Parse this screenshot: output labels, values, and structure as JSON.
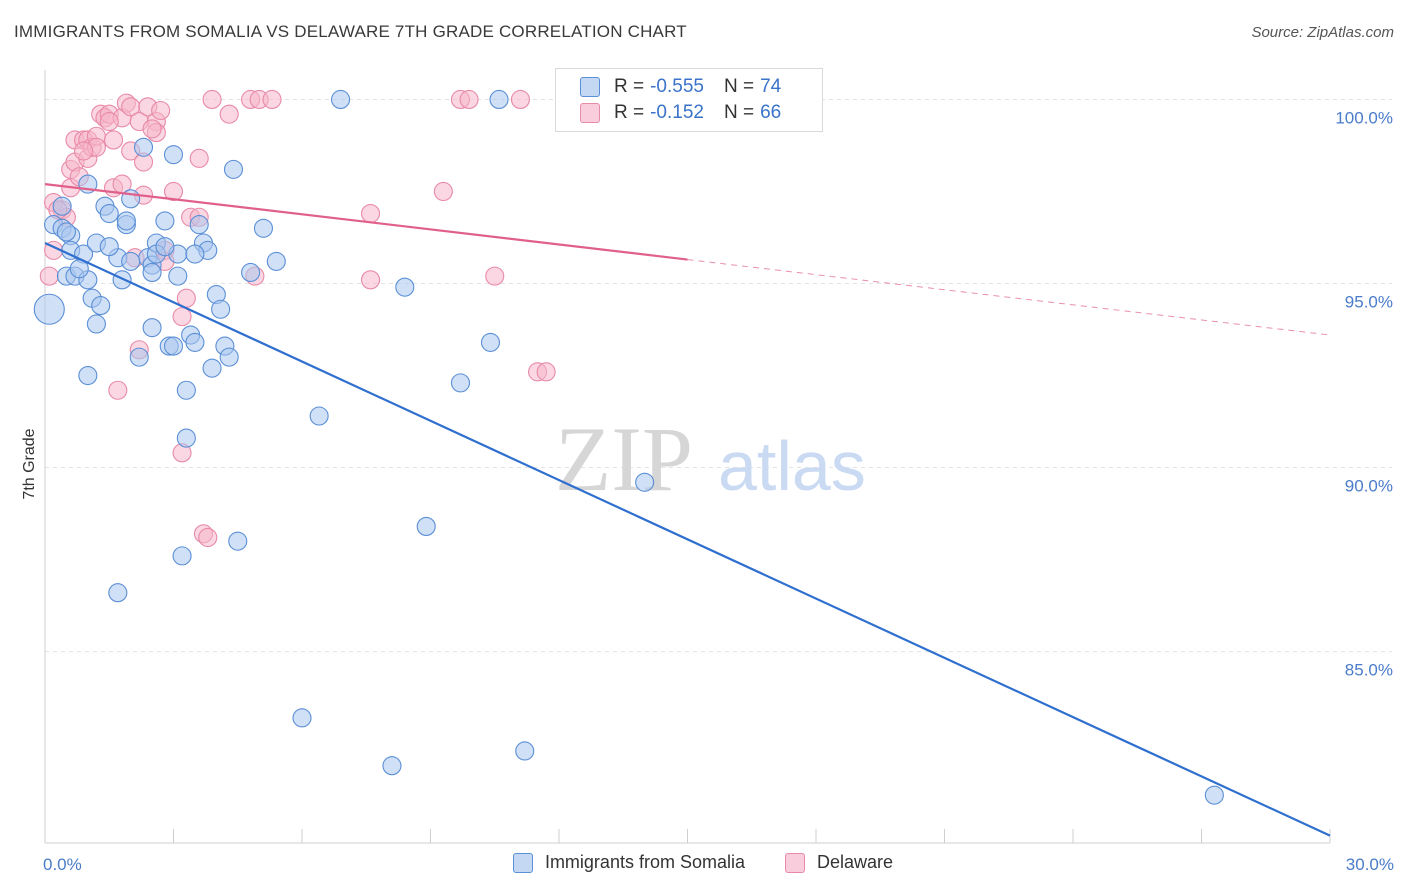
{
  "title": "IMMIGRANTS FROM SOMALIA VS DELAWARE 7TH GRADE CORRELATION CHART",
  "source": "Source: ZipAtlas.com",
  "watermark": {
    "zip": "ZIP",
    "atlas": "atlas"
  },
  "colors": {
    "blue_fill": "#a9c7ef",
    "blue_stroke": "#5b8fd6",
    "blue_line": "#2f6fcf",
    "pink_fill": "#f6b7cb",
    "pink_stroke": "#e88aa8",
    "pink_line": "#e0608a",
    "tick_text": "#4a7cc9",
    "grid": "#e3e3e3"
  },
  "legend": {
    "rows": [
      {
        "r_label": "R =",
        "r_value": "-0.555",
        "n_label": "N =",
        "n_value": "74"
      },
      {
        "r_label": "R =",
        "r_value": "-0.152",
        "n_label": "N =",
        "n_value": "66"
      }
    ]
  },
  "chart_data": {
    "type": "scatter",
    "xlabel": "",
    "ylabel": "7th Grade",
    "xlim": [
      0,
      30
    ],
    "ylim": [
      79.8,
      100.8
    ],
    "x_tick_labels": [
      {
        "value": 0,
        "label": "0.0%"
      },
      {
        "value": 30,
        "label": "30.0%"
      }
    ],
    "y_tick_labels": [
      {
        "value": 100,
        "label": "100.0%"
      },
      {
        "value": 95,
        "label": "95.0%"
      },
      {
        "value": 90,
        "label": "90.0%"
      },
      {
        "value": 85,
        "label": "85.0%"
      }
    ],
    "grid": true,
    "legend_position": "top-center",
    "series": [
      {
        "name": "Immigrants from Somalia",
        "trend": {
          "x0": 0,
          "y0": 96.1,
          "x1": 30,
          "y1": 80.0,
          "solid_until": 30
        },
        "points": [
          [
            0.1,
            94.3
          ],
          [
            0.2,
            96.6
          ],
          [
            0.4,
            96.5
          ],
          [
            0.4,
            97.1
          ],
          [
            0.5,
            95.2
          ],
          [
            0.6,
            96.3
          ],
          [
            0.6,
            95.9
          ],
          [
            0.7,
            95.2
          ],
          [
            0.9,
            95.8
          ],
          [
            1.0,
            95.1
          ],
          [
            0.8,
            95.4
          ],
          [
            1.0,
            97.7
          ],
          [
            1.1,
            94.6
          ],
          [
            1.2,
            93.9
          ],
          [
            1.3,
            94.4
          ],
          [
            1.2,
            96.1
          ],
          [
            1.4,
            97.1
          ],
          [
            1.5,
            96.9
          ],
          [
            1.7,
            95.7
          ],
          [
            1.8,
            95.1
          ],
          [
            1.9,
            96.6
          ],
          [
            2.0,
            97.3
          ],
          [
            2.3,
            98.7
          ],
          [
            2.4,
            95.7
          ],
          [
            2.5,
            95.5
          ],
          [
            2.6,
            96.1
          ],
          [
            2.6,
            95.8
          ],
          [
            2.8,
            96.7
          ],
          [
            2.9,
            93.3
          ],
          [
            3.0,
            98.5
          ],
          [
            3.1,
            95.8
          ],
          [
            3.1,
            95.2
          ],
          [
            3.3,
            92.1
          ],
          [
            3.3,
            90.8
          ],
          [
            3.4,
            93.6
          ],
          [
            3.5,
            93.4
          ],
          [
            3.6,
            96.6
          ],
          [
            3.7,
            96.1
          ],
          [
            3.8,
            95.9
          ],
          [
            3.9,
            92.7
          ],
          [
            4.0,
            94.7
          ],
          [
            4.1,
            94.3
          ],
          [
            4.2,
            93.3
          ],
          [
            4.4,
            98.1
          ],
          [
            4.5,
            88.0
          ],
          [
            4.8,
            95.3
          ],
          [
            5.1,
            96.5
          ],
          [
            5.4,
            95.6
          ],
          [
            6.0,
            83.2
          ],
          [
            6.4,
            91.4
          ],
          [
            6.9,
            100.0
          ],
          [
            8.1,
            81.9
          ],
          [
            8.4,
            94.9
          ],
          [
            8.9,
            88.4
          ],
          [
            9.7,
            92.3
          ],
          [
            10.4,
            93.4
          ],
          [
            10.6,
            100.0
          ],
          [
            11.2,
            82.3
          ],
          [
            14.0,
            89.6
          ],
          [
            27.3,
            81.1
          ],
          [
            1.9,
            96.7
          ],
          [
            2.5,
            95.3
          ],
          [
            1.7,
            86.6
          ],
          [
            3.2,
            87.6
          ],
          [
            2.2,
            93.0
          ],
          [
            2.5,
            93.8
          ],
          [
            3.0,
            93.3
          ],
          [
            4.3,
            93.0
          ],
          [
            1.5,
            96.0
          ],
          [
            0.5,
            96.4
          ],
          [
            1.0,
            92.5
          ],
          [
            2.8,
            96.0
          ],
          [
            3.5,
            95.8
          ],
          [
            2.0,
            95.6
          ]
        ]
      },
      {
        "name": "Delaware",
        "trend": {
          "x0": 0,
          "y0": 97.7,
          "x1": 30,
          "y1": 93.6,
          "solid_until": 15
        },
        "points": [
          [
            0.1,
            95.2
          ],
          [
            0.2,
            97.2
          ],
          [
            0.2,
            95.9
          ],
          [
            0.4,
            97.0
          ],
          [
            0.5,
            96.8
          ],
          [
            0.6,
            97.6
          ],
          [
            0.6,
            98.1
          ],
          [
            0.7,
            98.3
          ],
          [
            0.7,
            98.9
          ],
          [
            0.8,
            97.9
          ],
          [
            0.9,
            98.9
          ],
          [
            1.0,
            98.4
          ],
          [
            1.0,
            98.9
          ],
          [
            1.1,
            98.7
          ],
          [
            1.2,
            99.0
          ],
          [
            1.2,
            98.7
          ],
          [
            1.3,
            99.6
          ],
          [
            1.4,
            99.5
          ],
          [
            1.5,
            99.6
          ],
          [
            1.6,
            98.9
          ],
          [
            1.6,
            97.6
          ],
          [
            1.7,
            92.1
          ],
          [
            1.8,
            97.7
          ],
          [
            1.8,
            99.5
          ],
          [
            1.9,
            99.9
          ],
          [
            2.0,
            98.6
          ],
          [
            2.0,
            99.8
          ],
          [
            2.1,
            95.7
          ],
          [
            2.2,
            99.4
          ],
          [
            2.3,
            98.3
          ],
          [
            2.3,
            97.4
          ],
          [
            2.4,
            99.8
          ],
          [
            2.6,
            99.4
          ],
          [
            2.6,
            99.1
          ],
          [
            2.7,
            99.7
          ],
          [
            2.8,
            95.9
          ],
          [
            2.8,
            95.6
          ],
          [
            3.0,
            97.5
          ],
          [
            3.2,
            94.1
          ],
          [
            3.2,
            90.4
          ],
          [
            3.3,
            94.6
          ],
          [
            3.4,
            96.8
          ],
          [
            3.6,
            96.8
          ],
          [
            3.6,
            98.4
          ],
          [
            3.7,
            88.2
          ],
          [
            3.8,
            88.1
          ],
          [
            3.9,
            100.0
          ],
          [
            4.3,
            99.6
          ],
          [
            4.8,
            100.0
          ],
          [
            4.9,
            95.2
          ],
          [
            5.0,
            100.0
          ],
          [
            5.3,
            100.0
          ],
          [
            7.6,
            95.1
          ],
          [
            7.6,
            96.9
          ],
          [
            9.3,
            97.5
          ],
          [
            9.7,
            100.0
          ],
          [
            9.9,
            100.0
          ],
          [
            10.5,
            95.2
          ],
          [
            11.1,
            100.0
          ],
          [
            11.5,
            92.6
          ],
          [
            11.7,
            92.6
          ],
          [
            2.2,
            93.2
          ],
          [
            1.5,
            99.4
          ],
          [
            0.9,
            98.6
          ],
          [
            2.5,
            99.2
          ],
          [
            0.3,
            97.0
          ]
        ]
      }
    ]
  },
  "bottom_legend": [
    "Immigrants from Somalia",
    "Delaware"
  ]
}
